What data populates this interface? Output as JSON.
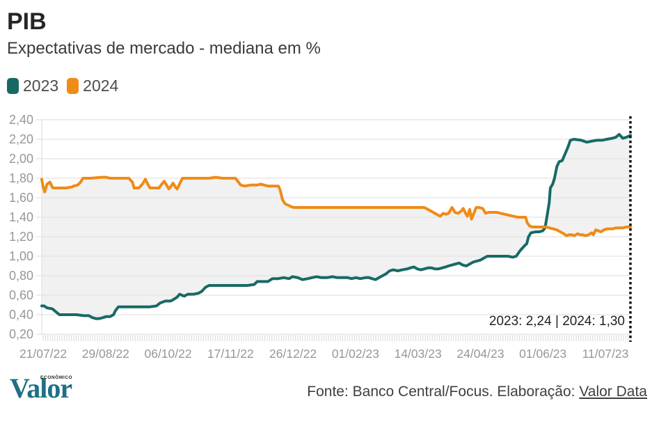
{
  "page": {
    "title": "PIB",
    "subtitle": "Expectativas de mercado - mediana em %"
  },
  "legend": {
    "items": [
      {
        "label": "2023",
        "color": "#176a64"
      },
      {
        "label": "2024",
        "color": "#ef8b17"
      }
    ]
  },
  "annotation": {
    "text": "2023: 2,24 | 2024: 1,30"
  },
  "footer": {
    "logo_main": "Valor",
    "logo_sub": "ECONÔMICO",
    "source_prefix": "Fonte: Banco Central/Focus. Elaboração: ",
    "source_link": "Valor Data"
  },
  "colors": {
    "series_2023": "#176a64",
    "series_2024": "#ef8b17",
    "band_fill": "#f1f1f1",
    "gridline": "#e2e2e2",
    "axis_text": "#979797",
    "minor_tick": "#d8d8d8",
    "dotted_line": "#111111"
  },
  "chart_data": {
    "type": "line",
    "title": "PIB",
    "subtitle": "Expectativas de mercado - mediana em %",
    "ylabel": "mediana em %",
    "xlabel": "",
    "ylim": [
      0.2,
      2.4
    ],
    "ytick_step": 0.2,
    "grid": "horizontal-only",
    "legend_position": "top-left",
    "band_between_series": true,
    "end_marker": "dotted-vertical-line",
    "xtick_labels": [
      "21/07/22",
      "29/08/22",
      "06/10/22",
      "17/11/22",
      "26/12/22",
      "01/02/23",
      "14/03/23",
      "24/04/23",
      "01/06/23",
      "11/07/23"
    ],
    "final_values": {
      "2023": "2,24",
      "2024": "1,30"
    },
    "series": [
      {
        "name": "2023",
        "color": "#176a64",
        "points": [
          [
            0,
            0.49
          ],
          [
            0.4,
            0.49
          ],
          [
            0.9,
            0.47
          ],
          [
            1.8,
            0.46
          ],
          [
            2.4,
            0.43
          ],
          [
            3,
            0.4
          ],
          [
            4.1,
            0.4
          ],
          [
            5.9,
            0.4
          ],
          [
            7.1,
            0.39
          ],
          [
            8,
            0.39
          ],
          [
            8.6,
            0.37
          ],
          [
            9.2,
            0.36
          ],
          [
            9.8,
            0.36
          ],
          [
            10.4,
            0.37
          ],
          [
            10.9,
            0.38
          ],
          [
            11.6,
            0.38
          ],
          [
            12.2,
            0.4
          ],
          [
            12.5,
            0.44
          ],
          [
            13,
            0.48
          ],
          [
            14.2,
            0.48
          ],
          [
            16.5,
            0.48
          ],
          [
            18.3,
            0.48
          ],
          [
            19.5,
            0.49
          ],
          [
            20.1,
            0.52
          ],
          [
            21,
            0.54
          ],
          [
            21.9,
            0.54
          ],
          [
            22.5,
            0.56
          ],
          [
            23,
            0.58
          ],
          [
            23.4,
            0.61
          ],
          [
            24.2,
            0.59
          ],
          [
            24.8,
            0.61
          ],
          [
            25.8,
            0.61
          ],
          [
            26.6,
            0.62
          ],
          [
            27.2,
            0.64
          ],
          [
            27.8,
            0.68
          ],
          [
            28.4,
            0.7
          ],
          [
            29.6,
            0.7
          ],
          [
            31.9,
            0.7
          ],
          [
            34.9,
            0.7
          ],
          [
            36.1,
            0.71
          ],
          [
            36.6,
            0.74
          ],
          [
            38.4,
            0.74
          ],
          [
            39.2,
            0.77
          ],
          [
            40.2,
            0.77
          ],
          [
            41.1,
            0.78
          ],
          [
            42,
            0.77
          ],
          [
            42.6,
            0.79
          ],
          [
            43.5,
            0.78
          ],
          [
            44.3,
            0.76
          ],
          [
            45.2,
            0.77
          ],
          [
            45.9,
            0.78
          ],
          [
            46.7,
            0.79
          ],
          [
            47.5,
            0.78
          ],
          [
            48.5,
            0.78
          ],
          [
            49.4,
            0.79
          ],
          [
            50.2,
            0.78
          ],
          [
            51.1,
            0.78
          ],
          [
            52,
            0.78
          ],
          [
            52.6,
            0.77
          ],
          [
            53.4,
            0.78
          ],
          [
            54.1,
            0.77
          ],
          [
            55,
            0.78
          ],
          [
            55.6,
            0.78
          ],
          [
            56.1,
            0.77
          ],
          [
            56.7,
            0.76
          ],
          [
            57.3,
            0.78
          ],
          [
            57.9,
            0.8
          ],
          [
            58.5,
            0.82
          ],
          [
            59.1,
            0.85
          ],
          [
            59.7,
            0.86
          ],
          [
            60.5,
            0.85
          ],
          [
            61.2,
            0.86
          ],
          [
            62.1,
            0.87
          ],
          [
            62.6,
            0.88
          ],
          [
            63.2,
            0.89
          ],
          [
            63.8,
            0.87
          ],
          [
            64.4,
            0.86
          ],
          [
            65,
            0.87
          ],
          [
            65.6,
            0.88
          ],
          [
            66.2,
            0.88
          ],
          [
            66.8,
            0.87
          ],
          [
            67.4,
            0.87
          ],
          [
            68,
            0.88
          ],
          [
            68.6,
            0.89
          ],
          [
            69.1,
            0.9
          ],
          [
            69.7,
            0.91
          ],
          [
            70.3,
            0.92
          ],
          [
            70.9,
            0.93
          ],
          [
            71.5,
            0.91
          ],
          [
            72.1,
            0.9
          ],
          [
            72.7,
            0.92
          ],
          [
            73.3,
            0.94
          ],
          [
            73.9,
            0.95
          ],
          [
            74.5,
            0.96
          ],
          [
            75.1,
            0.98
          ],
          [
            75.7,
            1.0
          ],
          [
            76.8,
            1.0
          ],
          [
            78,
            1.0
          ],
          [
            79.2,
            1.0
          ],
          [
            80,
            0.99
          ],
          [
            80.6,
            1.0
          ],
          [
            81.3,
            1.06
          ],
          [
            81.9,
            1.1
          ],
          [
            82.4,
            1.13
          ],
          [
            82.7,
            1.2
          ],
          [
            83.1,
            1.24
          ],
          [
            83.9,
            1.25
          ],
          [
            84.5,
            1.25
          ],
          [
            85.1,
            1.26
          ],
          [
            85.5,
            1.29
          ],
          [
            85.8,
            1.4
          ],
          [
            86.2,
            1.55
          ],
          [
            86.4,
            1.7
          ],
          [
            86.8,
            1.74
          ],
          [
            87.1,
            1.8
          ],
          [
            87.5,
            1.92
          ],
          [
            87.9,
            1.97
          ],
          [
            88.4,
            1.98
          ],
          [
            88.9,
            2.05
          ],
          [
            89.4,
            2.12
          ],
          [
            89.8,
            2.19
          ],
          [
            90.4,
            2.2
          ],
          [
            91.6,
            2.19
          ],
          [
            92.6,
            2.17
          ],
          [
            93.4,
            2.18
          ],
          [
            94.3,
            2.19
          ],
          [
            95.2,
            2.19
          ],
          [
            96,
            2.2
          ],
          [
            96.9,
            2.21
          ],
          [
            97.5,
            2.22
          ],
          [
            98.1,
            2.25
          ],
          [
            98.7,
            2.21
          ],
          [
            99.3,
            2.22
          ],
          [
            100,
            2.24
          ]
        ]
      },
      {
        "name": "2024",
        "color": "#ef8b17",
        "points": [
          [
            0,
            1.79
          ],
          [
            0.2,
            1.72
          ],
          [
            0.5,
            1.66
          ],
          [
            0.9,
            1.74
          ],
          [
            1.4,
            1.76
          ],
          [
            1.7,
            1.72
          ],
          [
            1.9,
            1.7
          ],
          [
            3,
            1.7
          ],
          [
            4.1,
            1.7
          ],
          [
            5.1,
            1.71
          ],
          [
            5.4,
            1.72
          ],
          [
            6.1,
            1.73
          ],
          [
            6.6,
            1.76
          ],
          [
            7,
            1.8
          ],
          [
            8.3,
            1.8
          ],
          [
            10.2,
            1.81
          ],
          [
            10.9,
            1.81
          ],
          [
            11.6,
            1.8
          ],
          [
            13,
            1.8
          ],
          [
            14.8,
            1.8
          ],
          [
            15.4,
            1.76
          ],
          [
            15.7,
            1.7
          ],
          [
            16.5,
            1.7
          ],
          [
            17.1,
            1.74
          ],
          [
            17.6,
            1.79
          ],
          [
            18.1,
            1.73
          ],
          [
            18.4,
            1.7
          ],
          [
            19.9,
            1.7
          ],
          [
            20.4,
            1.74
          ],
          [
            20.8,
            1.77
          ],
          [
            21.3,
            1.72
          ],
          [
            21.6,
            1.69
          ],
          [
            22,
            1.72
          ],
          [
            22.3,
            1.75
          ],
          [
            22.7,
            1.71
          ],
          [
            23,
            1.69
          ],
          [
            23.4,
            1.74
          ],
          [
            23.9,
            1.8
          ],
          [
            24.8,
            1.8
          ],
          [
            26.6,
            1.8
          ],
          [
            28.4,
            1.8
          ],
          [
            29.6,
            1.81
          ],
          [
            30.7,
            1.8
          ],
          [
            31.9,
            1.8
          ],
          [
            32.9,
            1.8
          ],
          [
            33.3,
            1.77
          ],
          [
            33.8,
            1.73
          ],
          [
            34.5,
            1.72
          ],
          [
            35.5,
            1.73
          ],
          [
            36.6,
            1.73
          ],
          [
            37.2,
            1.74
          ],
          [
            37.8,
            1.73
          ],
          [
            38.4,
            1.72
          ],
          [
            39.6,
            1.72
          ],
          [
            40.2,
            1.72
          ],
          [
            40.5,
            1.68
          ],
          [
            40.9,
            1.58
          ],
          [
            41.3,
            1.54
          ],
          [
            41.6,
            1.53
          ],
          [
            42,
            1.52
          ],
          [
            42.3,
            1.51
          ],
          [
            42.8,
            1.5
          ],
          [
            46.1,
            1.5
          ],
          [
            52,
            1.5
          ],
          [
            57.9,
            1.5
          ],
          [
            63.8,
            1.5
          ],
          [
            65,
            1.5
          ],
          [
            65.6,
            1.48
          ],
          [
            66.2,
            1.46
          ],
          [
            66.8,
            1.44
          ],
          [
            67.4,
            1.42
          ],
          [
            67.7,
            1.41
          ],
          [
            68.2,
            1.44
          ],
          [
            68.7,
            1.43
          ],
          [
            69.1,
            1.44
          ],
          [
            69.7,
            1.5
          ],
          [
            70.2,
            1.45
          ],
          [
            70.7,
            1.44
          ],
          [
            71.2,
            1.46
          ],
          [
            71.6,
            1.49
          ],
          [
            72,
            1.44
          ],
          [
            72.3,
            1.41
          ],
          [
            72.7,
            1.48
          ],
          [
            73,
            1.38
          ],
          [
            73.4,
            1.44
          ],
          [
            73.8,
            1.5
          ],
          [
            74.3,
            1.5
          ],
          [
            74.9,
            1.49
          ],
          [
            75.4,
            1.44
          ],
          [
            75.9,
            1.45
          ],
          [
            77.3,
            1.45
          ],
          [
            78,
            1.44
          ],
          [
            78.7,
            1.43
          ],
          [
            79.4,
            1.42
          ],
          [
            80.1,
            1.41
          ],
          [
            80.9,
            1.4
          ],
          [
            82.2,
            1.4
          ],
          [
            82.5,
            1.34
          ],
          [
            82.9,
            1.31
          ],
          [
            83.3,
            1.3
          ],
          [
            85.7,
            1.3
          ],
          [
            86.3,
            1.29
          ],
          [
            86.9,
            1.28
          ],
          [
            87.5,
            1.27
          ],
          [
            88.1,
            1.25
          ],
          [
            88.7,
            1.23
          ],
          [
            89.1,
            1.21
          ],
          [
            89.6,
            1.22
          ],
          [
            90.1,
            1.22
          ],
          [
            90.5,
            1.21
          ],
          [
            91,
            1.23
          ],
          [
            91.5,
            1.22
          ],
          [
            91.9,
            1.22
          ],
          [
            92.4,
            1.21
          ],
          [
            92.9,
            1.22
          ],
          [
            93.4,
            1.24
          ],
          [
            93.7,
            1.22
          ],
          [
            94.1,
            1.27
          ],
          [
            94.6,
            1.26
          ],
          [
            95,
            1.25
          ],
          [
            95.5,
            1.27
          ],
          [
            96,
            1.28
          ],
          [
            96.9,
            1.28
          ],
          [
            97.5,
            1.29
          ],
          [
            98.7,
            1.29
          ],
          [
            99.3,
            1.3
          ],
          [
            100,
            1.3
          ]
        ]
      }
    ]
  }
}
